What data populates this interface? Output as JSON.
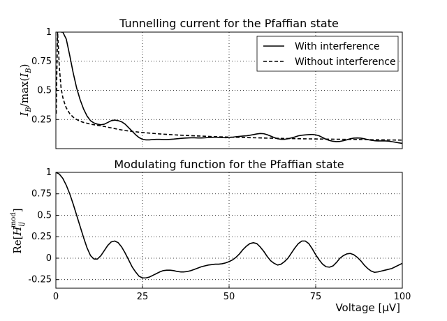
{
  "chart_data": [
    {
      "type": "line",
      "title": "Tunnelling current for the Pfaffian state",
      "ylabel": "I_B/max(I_B)",
      "xlabel": "",
      "xlim": [
        0,
        100
      ],
      "ylim": [
        0,
        1
      ],
      "grid": true,
      "legend": "top-right",
      "yticks": [
        {
          "value": 1,
          "label": "1"
        },
        {
          "value": 0.75,
          "label": "0.75"
        },
        {
          "value": 0.5,
          "label": "0.5"
        },
        {
          "value": 0.25,
          "label": "0.25"
        }
      ],
      "series": [
        {
          "name": "With interference",
          "style": "solid",
          "x": [
            1.4,
            2,
            3,
            4,
            5,
            6,
            7,
            8,
            9,
            10,
            11,
            12,
            13,
            14,
            15,
            16,
            17,
            18,
            19,
            20,
            21,
            22,
            23,
            24,
            25,
            26,
            27,
            28,
            29,
            30,
            31,
            32,
            33,
            34,
            35,
            36,
            37,
            38,
            39,
            40,
            41,
            42,
            43,
            44,
            45,
            46,
            47,
            48,
            49,
            50,
            51,
            52,
            53,
            54,
            55,
            56,
            57,
            58,
            59,
            60,
            61,
            62,
            63,
            64,
            65,
            66,
            67,
            68,
            69,
            70,
            71,
            72,
            73,
            74,
            75,
            76,
            77,
            78,
            79,
            80,
            81,
            82,
            83,
            84,
            85,
            86,
            87,
            88,
            89,
            90,
            91,
            92,
            93,
            94,
            95,
            96,
            97,
            98,
            99,
            100
          ],
          "values": [
            1.0,
            1.0,
            0.94,
            0.8,
            0.65,
            0.52,
            0.42,
            0.34,
            0.28,
            0.24,
            0.22,
            0.21,
            0.205,
            0.21,
            0.225,
            0.24,
            0.245,
            0.24,
            0.23,
            0.21,
            0.18,
            0.15,
            0.12,
            0.095,
            0.08,
            0.075,
            0.075,
            0.078,
            0.08,
            0.08,
            0.078,
            0.078,
            0.08,
            0.082,
            0.085,
            0.088,
            0.09,
            0.092,
            0.093,
            0.093,
            0.092,
            0.092,
            0.093,
            0.095,
            0.097,
            0.098,
            0.097,
            0.095,
            0.094,
            0.095,
            0.098,
            0.102,
            0.105,
            0.108,
            0.11,
            0.115,
            0.12,
            0.126,
            0.13,
            0.128,
            0.12,
            0.108,
            0.095,
            0.085,
            0.08,
            0.08,
            0.085,
            0.092,
            0.1,
            0.11,
            0.115,
            0.118,
            0.12,
            0.122,
            0.118,
            0.11,
            0.095,
            0.08,
            0.07,
            0.063,
            0.06,
            0.062,
            0.068,
            0.076,
            0.085,
            0.09,
            0.092,
            0.09,
            0.085,
            0.078,
            0.072,
            0.068,
            0.066,
            0.066,
            0.066,
            0.065,
            0.06,
            0.055,
            0.05,
            0.045
          ]
        },
        {
          "name": "Without interference",
          "style": "dashed",
          "x": [
            0.1,
            0.25,
            0.5,
            0.75,
            1,
            1.5,
            2,
            2.5,
            3,
            4,
            5,
            6,
            7,
            8,
            9,
            10,
            12,
            14,
            16,
            18,
            20,
            25,
            30,
            35,
            40,
            45,
            50,
            55,
            60,
            65,
            70,
            75,
            80,
            85,
            90,
            95,
            100
          ],
          "values": [
            0.3,
            0.6,
            1.0,
            0.85,
            0.7,
            0.52,
            0.44,
            0.39,
            0.35,
            0.3,
            0.27,
            0.25,
            0.235,
            0.225,
            0.218,
            0.21,
            0.2,
            0.19,
            0.178,
            0.166,
            0.155,
            0.138,
            0.126,
            0.117,
            0.11,
            0.104,
            0.099,
            0.095,
            0.091,
            0.088,
            0.085,
            0.083,
            0.081,
            0.079,
            0.077,
            0.075,
            0.073
          ]
        }
      ]
    },
    {
      "type": "line",
      "title": "Modulating function for the Pfaffian state",
      "ylabel": "Re[H_ij^mod]",
      "xlabel": "Voltage [μV]",
      "xlim": [
        0,
        100
      ],
      "ylim": [
        -0.35,
        1
      ],
      "grid": true,
      "yticks": [
        {
          "value": 1,
          "label": "1"
        },
        {
          "value": 0.75,
          "label": "0.75"
        },
        {
          "value": 0.5,
          "label": "0.5"
        },
        {
          "value": 0.25,
          "label": "0.25"
        },
        {
          "value": 0,
          "label": "0"
        },
        {
          "value": -0.25,
          "label": "-0.25"
        }
      ],
      "xticks": [
        {
          "value": 0,
          "label": "0"
        },
        {
          "value": 25,
          "label": "25"
        },
        {
          "value": 50,
          "label": "50"
        },
        {
          "value": 75,
          "label": "75"
        },
        {
          "value": 100,
          "label": "100"
        }
      ],
      "series": [
        {
          "style": "solid",
          "x": [
            0,
            1,
            2,
            3,
            4,
            5,
            6,
            7,
            8,
            9,
            10,
            11,
            12,
            13,
            14,
            15,
            16,
            17,
            18,
            19,
            20,
            21,
            22,
            23,
            24,
            25,
            26,
            27,
            28,
            29,
            30,
            31,
            32,
            33,
            34,
            35,
            36,
            37,
            38,
            39,
            40,
            41,
            42,
            43,
            44,
            45,
            46,
            47,
            48,
            49,
            50,
            51,
            52,
            53,
            54,
            55,
            56,
            57,
            58,
            59,
            60,
            61,
            62,
            63,
            64,
            65,
            66,
            67,
            68,
            69,
            70,
            71,
            72,
            73,
            74,
            75,
            76,
            77,
            78,
            79,
            80,
            81,
            82,
            83,
            84,
            85,
            86,
            87,
            88,
            89,
            90,
            91,
            92,
            93,
            94,
            95,
            96,
            97,
            98,
            99,
            100
          ],
          "values": [
            1.0,
            0.98,
            0.93,
            0.85,
            0.75,
            0.63,
            0.5,
            0.37,
            0.24,
            0.12,
            0.03,
            -0.01,
            -0.01,
            0.03,
            0.09,
            0.15,
            0.19,
            0.2,
            0.18,
            0.13,
            0.06,
            -0.02,
            -0.1,
            -0.16,
            -0.21,
            -0.23,
            -0.23,
            -0.22,
            -0.2,
            -0.18,
            -0.16,
            -0.145,
            -0.14,
            -0.14,
            -0.145,
            -0.155,
            -0.16,
            -0.16,
            -0.155,
            -0.145,
            -0.13,
            -0.115,
            -0.1,
            -0.09,
            -0.08,
            -0.075,
            -0.07,
            -0.07,
            -0.065,
            -0.055,
            -0.04,
            -0.02,
            0.01,
            0.05,
            0.1,
            0.14,
            0.17,
            0.18,
            0.17,
            0.13,
            0.08,
            0.02,
            -0.03,
            -0.06,
            -0.08,
            -0.07,
            -0.04,
            0.0,
            0.06,
            0.12,
            0.17,
            0.2,
            0.2,
            0.17,
            0.11,
            0.04,
            -0.02,
            -0.07,
            -0.1,
            -0.105,
            -0.09,
            -0.05,
            0.0,
            0.03,
            0.05,
            0.055,
            0.04,
            0.01,
            -0.03,
            -0.08,
            -0.12,
            -0.15,
            -0.165,
            -0.16,
            -0.15,
            -0.14,
            -0.13,
            -0.12,
            -0.1,
            -0.08,
            -0.06
          ]
        }
      ]
    }
  ]
}
